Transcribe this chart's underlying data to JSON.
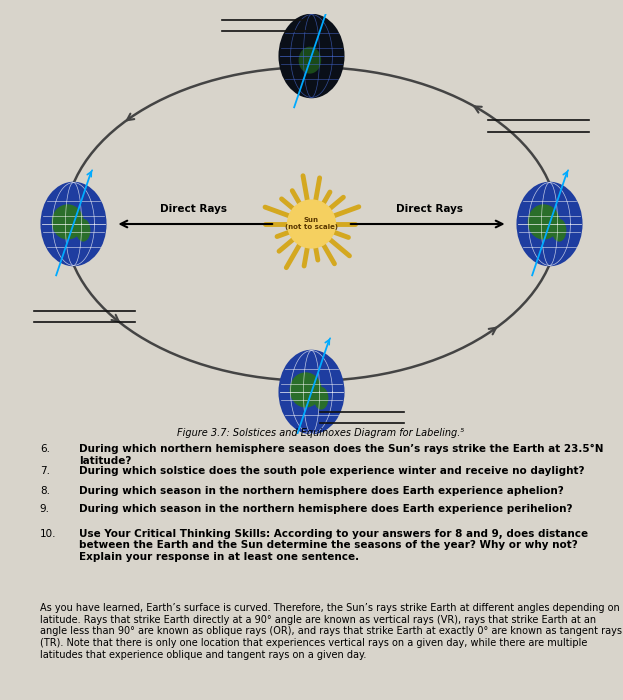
{
  "bg_color": "#d8d4cb",
  "diagram_title": "Figure 3.7: Solstices and Equinoxes Diagram for Labeling.⁵",
  "sun_label": "Sun\n(not to scale)",
  "direct_rays_label": "Direct Rays",
  "orbit_color": "#444444",
  "sun_body_color": "#f5d060",
  "sun_ray_color": "#d4a820",
  "sun_outline_color": "#a07010",
  "earth_dark_color": "#0a0f18",
  "earth_blue_color": "#1e3da0",
  "earth_green_color": "#2a6e2a",
  "earth_grid_color": "#4466cc",
  "axis_tilt_color": "#00aaff",
  "label_line_color": "#111111",
  "questions": [
    {
      "num": "6.",
      "text": "During which northern hemisphere season does the Sun’s rays strike the Earth at 23.5°N latitude?"
    },
    {
      "num": "7.",
      "text": "During which solstice does the south pole experience winter and receive no daylight?"
    },
    {
      "num": "8.",
      "text": "During which season in the northern hemisphere does Earth experience aphelion?"
    },
    {
      "num": "9.",
      "text": "During which season in the northern hemisphere does Earth experience perihelion?"
    },
    {
      "num": "10.",
      "text": "Use Your Critical Thinking Skills: According to your answers for 8 and 9, does distance between the Earth and the Sun determine the seasons of the year? Why or why not? Explain your response in at least one sentence."
    },
    {
      "num": "",
      "text": "As you have learned, Earth’s surface is curved. Therefore, the Sun’s rays strike Earth at different angles depending on latitude. Rays that strike Earth directly at a 90° angle are known as vertical rays (VR), rays that strike Earth at an angle less than 90° are known as oblique rays (OR), and rays that strike Earth at exactly 0° are known as tangent rays (TR). Note that there is only one location that experiences vertical rays on a given day, while there are multiple latitudes that experience oblique and tangent rays on a given day."
    }
  ]
}
